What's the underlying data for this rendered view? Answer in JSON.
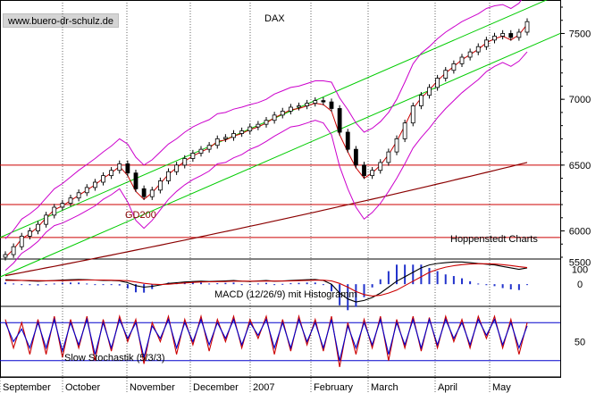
{
  "watermark": "www.buero-dr-schulz.de",
  "chart_data": [
    {
      "type": "candlestick",
      "title": "DAX",
      "yaxis": {
        "ticks": [
          6000,
          6500,
          7000,
          7500
        ],
        "range": [
          5800,
          7700
        ],
        "position": "right"
      },
      "x_months": [
        "September",
        "October",
        "November",
        "December",
        "2007",
        "February",
        "March",
        "April",
        "May"
      ],
      "support_levels": [
        6500,
        6200,
        5950
      ],
      "trend_channel": {
        "upper": [
          [
            0,
            5950
          ],
          [
            1,
            7800
          ]
        ],
        "lower": [
          [
            0,
            5650
          ],
          [
            1,
            7500
          ]
        ],
        "color": "#00cc00"
      },
      "moving_average": {
        "name": "GD200",
        "start": 5660,
        "end": 6520
      },
      "close_series": [
        5820,
        5880,
        5960,
        6000,
        6050,
        6120,
        6180,
        6210,
        6250,
        6290,
        6330,
        6370,
        6420,
        6460,
        6510,
        6440,
        6320,
        6260,
        6310,
        6380,
        6450,
        6500,
        6550,
        6590,
        6620,
        6650,
        6700,
        6710,
        6740,
        6760,
        6790,
        6810,
        6840,
        6880,
        6910,
        6940,
        6950,
        6970,
        6990,
        6980,
        6930,
        6750,
        6620,
        6500,
        6420,
        6460,
        6520,
        6600,
        6700,
        6820,
        6950,
        7030,
        7090,
        7160,
        7220,
        7270,
        7320,
        7360,
        7400,
        7450,
        7480,
        7500,
        7470,
        7510,
        7590
      ],
      "bollinger_width": [
        120,
        125,
        130,
        130,
        130,
        130,
        140,
        150,
        160,
        170,
        175,
        180,
        180,
        185,
        190,
        220,
        240,
        240,
        230,
        220,
        210,
        200,
        200,
        200,
        200,
        195,
        190,
        190,
        185,
        180,
        170,
        165,
        160,
        160,
        155,
        150,
        150,
        150,
        150,
        160,
        200,
        260,
        300,
        320,
        330,
        320,
        310,
        300,
        300,
        310,
        320,
        320,
        310,
        300,
        290,
        280,
        270,
        260,
        250,
        240,
        230,
        220,
        220,
        220,
        230
      ],
      "annotation": "Hoppenstedt Charts"
    },
    {
      "type": "line",
      "title": "MACD (12/26/9) mit Histogramm",
      "yaxis": {
        "ticks": [
          0,
          100
        ],
        "range": [
          -150,
          170
        ]
      },
      "extra_tick_label": "5500",
      "macd": [
        30,
        28,
        25,
        22,
        20,
        22,
        25,
        28,
        30,
        32,
        30,
        28,
        26,
        25,
        22,
        10,
        -10,
        -20,
        -15,
        -5,
        5,
        10,
        15,
        18,
        20,
        18,
        20,
        22,
        25,
        20,
        18,
        22,
        25,
        20,
        22,
        25,
        28,
        30,
        32,
        25,
        0,
        -60,
        -100,
        -120,
        -110,
        -90,
        -60,
        -20,
        20,
        50,
        80,
        110,
        130,
        140,
        145,
        150,
        150,
        145,
        140,
        135,
        130,
        120,
        110,
        100,
        110
      ],
      "signal": [
        25,
        26,
        26,
        25,
        24,
        23,
        23,
        24,
        25,
        27,
        28,
        28,
        28,
        27,
        26,
        23,
        15,
        6,
        0,
        -2,
        0,
        4,
        8,
        12,
        15,
        16,
        17,
        18,
        20,
        20,
        20,
        20,
        21,
        21,
        21,
        22,
        24,
        25,
        27,
        27,
        22,
        5,
        -20,
        -50,
        -70,
        -80,
        -75,
        -60,
        -40,
        -10,
        20,
        50,
        80,
        100,
        115,
        125,
        132,
        136,
        138,
        138,
        136,
        132,
        126,
        118,
        112
      ],
      "histogram_color": "#2233cc"
    },
    {
      "type": "line",
      "title": "Slow Stochastik (5/3/3)",
      "yaxis": {
        "ticks": [
          50
        ],
        "range": [
          0,
          100
        ],
        "levels": [
          80,
          20
        ]
      },
      "k": [
        85,
        40,
        80,
        30,
        85,
        30,
        90,
        25,
        85,
        40,
        90,
        20,
        85,
        35,
        90,
        50,
        85,
        15,
        80,
        50,
        90,
        30,
        85,
        45,
        90,
        35,
        85,
        50,
        90,
        40,
        85,
        55,
        90,
        30,
        85,
        35,
        90,
        45,
        85,
        35,
        90,
        10,
        80,
        30,
        85,
        40,
        90,
        20,
        85,
        40,
        90,
        35,
        88,
        40,
        90,
        50,
        85,
        40,
        90,
        55,
        90,
        40,
        85,
        30,
        80
      ],
      "d": [
        80,
        50,
        70,
        40,
        80,
        40,
        85,
        35,
        80,
        45,
        85,
        30,
        80,
        40,
        85,
        55,
        80,
        25,
        75,
        55,
        85,
        40,
        80,
        50,
        85,
        45,
        80,
        55,
        85,
        45,
        80,
        60,
        85,
        40,
        80,
        40,
        85,
        50,
        80,
        40,
        85,
        20,
        75,
        40,
        80,
        45,
        85,
        30,
        80,
        45,
        85,
        40,
        85,
        45,
        85,
        55,
        80,
        45,
        85,
        60,
        85,
        45,
        80,
        40,
        75
      ]
    }
  ]
}
